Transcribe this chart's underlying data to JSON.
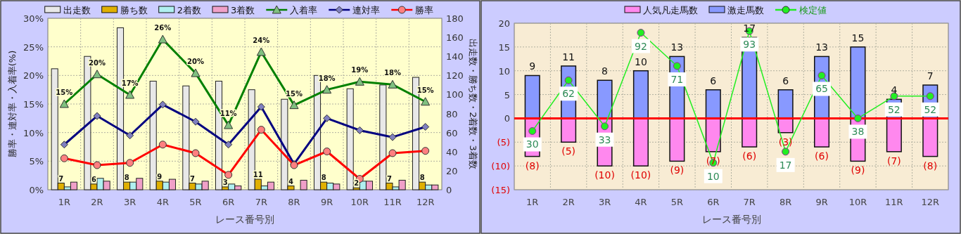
{
  "chart_data": [
    {
      "type": "bar",
      "xlabel": "レース番号別",
      "ylabel": "勝率・連対率・入着率(%)",
      "y2label": "出走数・勝ち数・2着数・3着数",
      "categories": [
        "1R",
        "2R",
        "3R",
        "4R",
        "5R",
        "6R",
        "7R",
        "8R",
        "9R",
        "10R",
        "11R",
        "12R"
      ],
      "series": [
        {
          "name": "出走数",
          "axis": "y2",
          "color": "#e8e8e8",
          "values": [
            127,
            140,
            170,
            114,
            109,
            114,
            105,
            95,
            120,
            106,
            110,
            118
          ]
        },
        {
          "name": "勝ち数",
          "axis": "y2",
          "color": "#e0b000",
          "values": [
            7,
            6,
            8,
            9,
            7,
            3,
            11,
            4,
            8,
            2,
            7,
            8
          ],
          "value_labels": [
            "7",
            "6",
            "8",
            "9",
            "7",
            "3",
            "11",
            "4",
            "8",
            "2",
            "7",
            "8"
          ]
        },
        {
          "name": "2着数",
          "axis": "y2",
          "color": "#b0f0f0",
          "values": [
            3,
            12,
            8,
            8,
            6,
            6,
            4,
            0,
            7,
            9,
            3,
            5
          ]
        },
        {
          "name": "3着数",
          "axis": "y2",
          "color": "#f0a0c8",
          "values": [
            8,
            9,
            12,
            11,
            9,
            4,
            8,
            10,
            6,
            9,
            10,
            5
          ]
        },
        {
          "name": "入着率",
          "type": "line",
          "marker": "triangle",
          "color": "#008000",
          "values": [
            15.0,
            20.2,
            16.6,
            26.3,
            20.4,
            11.3,
            24.1,
            14.8,
            17.5,
            18.9,
            18.4,
            15.4
          ],
          "value_labels": [
            "15%",
            "20%",
            "17%",
            "26%",
            "20%",
            "11%",
            "24%",
            "15%",
            "18%",
            "19%",
            "18%",
            "15%"
          ]
        },
        {
          "name": "連対率",
          "type": "line",
          "marker": "diamond",
          "color": "#000080",
          "values": [
            7.9,
            12.9,
            9.5,
            14.9,
            11.9,
            7.9,
            14.5,
            4.5,
            12.5,
            10.4,
            9.2,
            11.0
          ]
        },
        {
          "name": "勝率",
          "type": "line",
          "marker": "circle",
          "color": "#ff0000",
          "values": [
            5.5,
            4.3,
            4.7,
            7.9,
            6.4,
            2.6,
            10.5,
            4.3,
            6.7,
            1.9,
            6.4,
            6.8
          ]
        }
      ],
      "ylim": [
        0,
        30
      ],
      "yticks": [
        {
          "value": 0,
          "label": "0%"
        },
        {
          "value": 5,
          "label": "5%"
        },
        {
          "value": 10,
          "label": "10%"
        },
        {
          "value": 15,
          "label": "15%"
        },
        {
          "value": 20,
          "label": "20%"
        },
        {
          "value": 25,
          "label": "25%"
        },
        {
          "value": 30,
          "label": "30%"
        }
      ],
      "y2lim": [
        0,
        180
      ],
      "y2ticks": [
        0,
        20,
        40,
        60,
        80,
        100,
        120,
        140,
        160,
        180
      ],
      "grid": true,
      "legend": "top"
    },
    {
      "type": "bar",
      "xlabel": "レース番号別",
      "stacked": true,
      "categories": [
        "1R",
        "2R",
        "3R",
        "4R",
        "5R",
        "6R",
        "7R",
        "8R",
        "9R",
        "10R",
        "11R",
        "12R"
      ],
      "series": [
        {
          "name": "人気凡走馬数",
          "color": "#ff88ee",
          "values": [
            -8,
            -5,
            -10,
            -10,
            -9,
            -7,
            -6,
            -3,
            -6,
            -9,
            -7,
            -8
          ],
          "value_labels": [
            "(8)",
            "(5)",
            "(10)",
            "(10)",
            "(9)",
            "(7)",
            "(6)",
            "(3)",
            "(6)",
            "(9)",
            "(7)",
            "(8)"
          ]
        },
        {
          "name": "激走馬数",
          "color": "#8899ff",
          "values": [
            9,
            11,
            8,
            10,
            13,
            6,
            17,
            6,
            13,
            15,
            4,
            7
          ],
          "value_labels": [
            "9",
            "11",
            "8",
            "10",
            "13",
            "6",
            "17",
            "6",
            "13",
            "15",
            "4",
            "7"
          ]
        },
        {
          "name": "検定値",
          "type": "line",
          "axis": "y2",
          "marker": "circle",
          "color": "#22ee22",
          "values": [
            30,
            62,
            33,
            92,
            71,
            10,
            93,
            17,
            65,
            38,
            52,
            52
          ],
          "value_labels": [
            "30",
            "62",
            "33",
            "92",
            "71",
            "10",
            "93",
            "17",
            "65",
            "38",
            "52",
            "52"
          ]
        }
      ],
      "ylim": [
        -15,
        20
      ],
      "y2lim": [
        -7,
        98
      ],
      "yticks": [
        {
          "value": -15,
          "label": "(15)"
        },
        {
          "value": -10,
          "label": "(10)"
        },
        {
          "value": -5,
          "label": "(5)"
        },
        0,
        5,
        10,
        15,
        20
      ],
      "ref_lines": [
        {
          "axis": "y",
          "value": 0,
          "color": "#ff0000"
        }
      ],
      "grid": true,
      "legend": "top"
    }
  ]
}
